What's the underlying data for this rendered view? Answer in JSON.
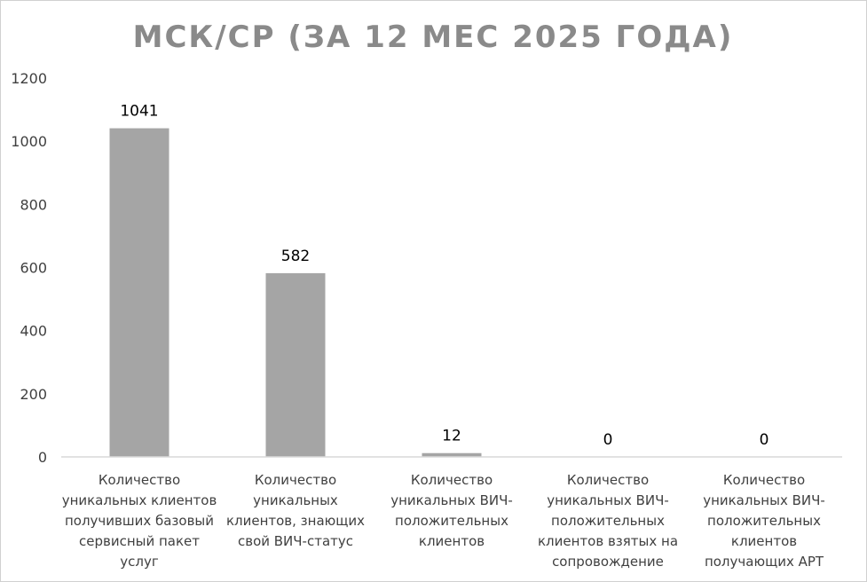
{
  "chart_data": {
    "type": "bar",
    "title": "МСК/СР (ЗА 12 МЕС 2025 ГОДА)",
    "xlabel": "",
    "ylabel": "",
    "ylim": [
      0,
      1200
    ],
    "yticks": [
      0,
      200,
      400,
      600,
      800,
      1000,
      1200
    ],
    "grid": false,
    "legend": "none",
    "bar_color": "#a5a5a5",
    "categories": [
      [
        "Количество",
        "уникальных клиентов",
        "получивших базовый",
        "сервисный пакет",
        "услуг"
      ],
      [
        "Количество",
        "уникальных",
        "клиентов, знающих",
        "свой ВИЧ-статус"
      ],
      [
        "Количество",
        "уникальных ВИЧ-",
        "положительных",
        "клиентов"
      ],
      [
        "Количество",
        "уникальных ВИЧ-",
        "положительных",
        "клиентов взятых на",
        "сопровождение"
      ],
      [
        "Количество",
        "уникальных ВИЧ-",
        "положительных",
        "клиентов",
        "получающих АРТ"
      ]
    ],
    "values": [
      1041,
      582,
      12,
      0,
      0
    ],
    "data_labels": [
      "1041",
      "582",
      "12",
      "0",
      "0"
    ]
  }
}
